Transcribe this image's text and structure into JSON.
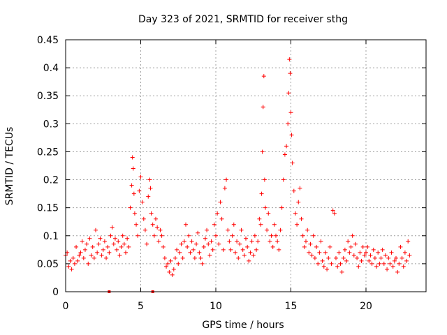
{
  "chart_data": {
    "type": "scatter",
    "title": "Day 323 of 2021, SRMTID for receiver sthg",
    "xlabel": "GPS time / hours",
    "ylabel": "SRMTID / TECUs",
    "xlim": [
      0,
      24
    ],
    "ylim": [
      0,
      0.45
    ],
    "xticks": [
      0,
      5,
      10,
      15,
      20
    ],
    "yticks": [
      0,
      0.05,
      0.1,
      0.15,
      0.2,
      0.25,
      0.3,
      0.35,
      0.4,
      0.45
    ],
    "xtick_labels": [
      "0",
      "5",
      "10",
      "15",
      "20"
    ],
    "ytick_labels": [
      "0",
      "0.05",
      "0.1",
      "0.15",
      "0.2",
      "0.25",
      "0.3",
      "0.35",
      "0.4",
      "0.45"
    ],
    "grid": true,
    "marker": "+",
    "color": "#ff0000",
    "zero_markers_x": [
      2.9,
      5.8
    ],
    "series": [
      {
        "name": "SRMTID",
        "points": [
          [
            0.0,
            0.065
          ],
          [
            0.1,
            0.07
          ],
          [
            0.2,
            0.045
          ],
          [
            0.3,
            0.055
          ],
          [
            0.4,
            0.04
          ],
          [
            0.5,
            0.06
          ],
          [
            0.6,
            0.05
          ],
          [
            0.7,
            0.08
          ],
          [
            0.8,
            0.055
          ],
          [
            0.9,
            0.065
          ],
          [
            1.0,
            0.07
          ],
          [
            1.1,
            0.09
          ],
          [
            1.2,
            0.06
          ],
          [
            1.3,
            0.075
          ],
          [
            1.4,
            0.085
          ],
          [
            1.5,
            0.05
          ],
          [
            1.6,
            0.095
          ],
          [
            1.7,
            0.065
          ],
          [
            1.8,
            0.08
          ],
          [
            1.9,
            0.06
          ],
          [
            2.0,
            0.11
          ],
          [
            2.1,
            0.07
          ],
          [
            2.2,
            0.085
          ],
          [
            2.3,
            0.095
          ],
          [
            2.4,
            0.065
          ],
          [
            2.5,
            0.075
          ],
          [
            2.6,
            0.09
          ],
          [
            2.7,
            0.06
          ],
          [
            2.8,
            0.08
          ],
          [
            2.9,
            0.07
          ],
          [
            3.0,
            0.1
          ],
          [
            3.1,
            0.115
          ],
          [
            3.2,
            0.085
          ],
          [
            3.3,
            0.095
          ],
          [
            3.4,
            0.075
          ],
          [
            3.5,
            0.09
          ],
          [
            3.6,
            0.065
          ],
          [
            3.7,
            0.08
          ],
          [
            3.8,
            0.1
          ],
          [
            3.9,
            0.085
          ],
          [
            4.0,
            0.07
          ],
          [
            4.1,
            0.095
          ],
          [
            4.2,
            0.08
          ],
          [
            4.3,
            0.15
          ],
          [
            4.4,
            0.19
          ],
          [
            4.45,
            0.24
          ],
          [
            4.5,
            0.22
          ],
          [
            4.55,
            0.175
          ],
          [
            4.6,
            0.14
          ],
          [
            4.7,
            0.12
          ],
          [
            4.8,
            0.1
          ],
          [
            4.9,
            0.18
          ],
          [
            5.0,
            0.205
          ],
          [
            5.1,
            0.16
          ],
          [
            5.2,
            0.13
          ],
          [
            5.3,
            0.11
          ],
          [
            5.4,
            0.085
          ],
          [
            5.5,
            0.17
          ],
          [
            5.6,
            0.2
          ],
          [
            5.65,
            0.185
          ],
          [
            5.7,
            0.14
          ],
          [
            5.8,
            0.12
          ],
          [
            5.9,
            0.1
          ],
          [
            6.0,
            0.13
          ],
          [
            6.1,
            0.115
          ],
          [
            6.2,
            0.09
          ],
          [
            6.3,
            0.11
          ],
          [
            6.4,
            0.1
          ],
          [
            6.5,
            0.08
          ],
          [
            6.6,
            0.06
          ],
          [
            6.7,
            0.045
          ],
          [
            6.8,
            0.05
          ],
          [
            6.9,
            0.035
          ],
          [
            7.0,
            0.055
          ],
          [
            7.1,
            0.03
          ],
          [
            7.2,
            0.04
          ],
          [
            7.3,
            0.06
          ],
          [
            7.4,
            0.075
          ],
          [
            7.5,
            0.05
          ],
          [
            7.6,
            0.07
          ],
          [
            7.7,
            0.085
          ],
          [
            7.8,
            0.06
          ],
          [
            7.9,
            0.09
          ],
          [
            8.0,
            0.12
          ],
          [
            8.1,
            0.08
          ],
          [
            8.2,
            0.1
          ],
          [
            8.3,
            0.07
          ],
          [
            8.4,
            0.09
          ],
          [
            8.5,
            0.075
          ],
          [
            8.6,
            0.06
          ],
          [
            8.7,
            0.085
          ],
          [
            8.8,
            0.105
          ],
          [
            8.9,
            0.07
          ],
          [
            9.0,
            0.06
          ],
          [
            9.1,
            0.05
          ],
          [
            9.2,
            0.08
          ],
          [
            9.3,
            0.095
          ],
          [
            9.4,
            0.11
          ],
          [
            9.5,
            0.085
          ],
          [
            9.6,
            0.065
          ],
          [
            9.7,
            0.09
          ],
          [
            9.8,
            0.075
          ],
          [
            9.9,
            0.12
          ],
          [
            10.0,
            0.1
          ],
          [
            10.1,
            0.14
          ],
          [
            10.2,
            0.085
          ],
          [
            10.3,
            0.16
          ],
          [
            10.4,
            0.13
          ],
          [
            10.5,
            0.075
          ],
          [
            10.6,
            0.185
          ],
          [
            10.7,
            0.2
          ],
          [
            10.8,
            0.11
          ],
          [
            10.9,
            0.09
          ],
          [
            11.0,
            0.075
          ],
          [
            11.1,
            0.1
          ],
          [
            11.2,
            0.12
          ],
          [
            11.3,
            0.07
          ],
          [
            11.4,
            0.09
          ],
          [
            11.5,
            0.06
          ],
          [
            11.6,
            0.085
          ],
          [
            11.7,
            0.11
          ],
          [
            11.8,
            0.075
          ],
          [
            11.9,
            0.065
          ],
          [
            12.0,
            0.095
          ],
          [
            12.1,
            0.08
          ],
          [
            12.2,
            0.055
          ],
          [
            12.3,
            0.07
          ],
          [
            12.4,
            0.09
          ],
          [
            12.5,
            0.065
          ],
          [
            12.6,
            0.1
          ],
          [
            12.7,
            0.075
          ],
          [
            12.8,
            0.09
          ],
          [
            12.9,
            0.13
          ],
          [
            13.0,
            0.12
          ],
          [
            13.05,
            0.175
          ],
          [
            13.1,
            0.25
          ],
          [
            13.15,
            0.33
          ],
          [
            13.2,
            0.385
          ],
          [
            13.25,
            0.2
          ],
          [
            13.3,
            0.15
          ],
          [
            13.4,
            0.11
          ],
          [
            13.5,
            0.14
          ],
          [
            13.6,
            0.09
          ],
          [
            13.7,
            0.1
          ],
          [
            13.8,
            0.08
          ],
          [
            13.9,
            0.12
          ],
          [
            14.0,
            0.1
          ],
          [
            14.1,
            0.09
          ],
          [
            14.2,
            0.075
          ],
          [
            14.3,
            0.11
          ],
          [
            14.4,
            0.15
          ],
          [
            14.5,
            0.2
          ],
          [
            14.6,
            0.245
          ],
          [
            14.7,
            0.26
          ],
          [
            14.8,
            0.3
          ],
          [
            14.85,
            0.355
          ],
          [
            14.9,
            0.415
          ],
          [
            14.95,
            0.39
          ],
          [
            15.0,
            0.32
          ],
          [
            15.05,
            0.28
          ],
          [
            15.1,
            0.23
          ],
          [
            15.2,
            0.18
          ],
          [
            15.3,
            0.14
          ],
          [
            15.4,
            0.12
          ],
          [
            15.5,
            0.16
          ],
          [
            15.6,
            0.185
          ],
          [
            15.7,
            0.13
          ],
          [
            15.8,
            0.1
          ],
          [
            15.9,
            0.08
          ],
          [
            16.0,
            0.09
          ],
          [
            16.1,
            0.11
          ],
          [
            16.2,
            0.07
          ],
          [
            16.3,
            0.085
          ],
          [
            16.4,
            0.065
          ],
          [
            16.5,
            0.1
          ],
          [
            16.6,
            0.06
          ],
          [
            16.7,
            0.08
          ],
          [
            16.8,
            0.05
          ],
          [
            16.9,
            0.07
          ],
          [
            17.0,
            0.09
          ],
          [
            17.1,
            0.055
          ],
          [
            17.2,
            0.045
          ],
          [
            17.3,
            0.07
          ],
          [
            17.4,
            0.04
          ],
          [
            17.5,
            0.06
          ],
          [
            17.6,
            0.08
          ],
          [
            17.7,
            0.05
          ],
          [
            17.8,
            0.145
          ],
          [
            17.9,
            0.14
          ],
          [
            18.0,
            0.06
          ],
          [
            18.1,
            0.045
          ],
          [
            18.2,
            0.07
          ],
          [
            18.3,
            0.05
          ],
          [
            18.4,
            0.035
          ],
          [
            18.5,
            0.06
          ],
          [
            18.6,
            0.075
          ],
          [
            18.7,
            0.055
          ],
          [
            18.8,
            0.09
          ],
          [
            18.9,
            0.07
          ],
          [
            19.0,
            0.08
          ],
          [
            19.1,
            0.1
          ],
          [
            19.2,
            0.065
          ],
          [
            19.3,
            0.085
          ],
          [
            19.4,
            0.06
          ],
          [
            19.5,
            0.045
          ],
          [
            19.6,
            0.07
          ],
          [
            19.7,
            0.055
          ],
          [
            19.8,
            0.08
          ],
          [
            19.9,
            0.065
          ],
          [
            20.0,
            0.07
          ],
          [
            20.1,
            0.08
          ],
          [
            20.2,
            0.055
          ],
          [
            20.3,
            0.065
          ],
          [
            20.4,
            0.05
          ],
          [
            20.5,
            0.075
          ],
          [
            20.6,
            0.06
          ],
          [
            20.7,
            0.045
          ],
          [
            20.8,
            0.07
          ],
          [
            20.9,
            0.05
          ],
          [
            21.0,
            0.06
          ],
          [
            21.1,
            0.075
          ],
          [
            21.2,
            0.05
          ],
          [
            21.3,
            0.065
          ],
          [
            21.4,
            0.04
          ],
          [
            21.5,
            0.06
          ],
          [
            21.6,
            0.05
          ],
          [
            21.7,
            0.07
          ],
          [
            21.8,
            0.045
          ],
          [
            21.9,
            0.055
          ],
          [
            22.0,
            0.06
          ],
          [
            22.1,
            0.035
          ],
          [
            22.2,
            0.05
          ],
          [
            22.3,
            0.08
          ],
          [
            22.4,
            0.06
          ],
          [
            22.5,
            0.045
          ],
          [
            22.6,
            0.07
          ],
          [
            22.7,
            0.055
          ],
          [
            22.8,
            0.09
          ],
          [
            22.9,
            0.065
          ]
        ]
      }
    ]
  }
}
